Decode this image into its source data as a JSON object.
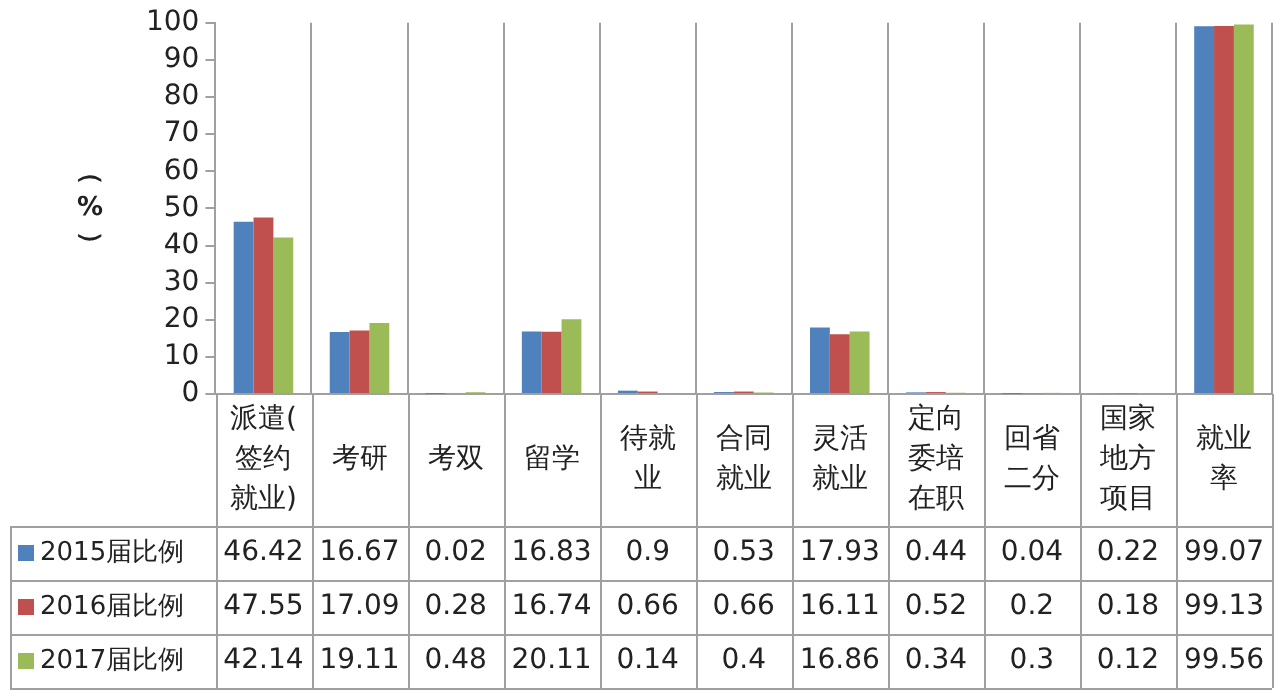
{
  "chart_data": {
    "type": "bar",
    "ylabel": "（%）",
    "categories": [
      "派遣(签约就业)",
      "考研",
      "考双",
      "留学",
      "待就业",
      "合同就业",
      "灵活就业",
      "定向委培在职",
      "回省二分",
      "国家地方项目",
      "就业率"
    ],
    "series": [
      {
        "name": "2015届比例",
        "color": "#4f81bd",
        "values": [
          46.42,
          16.67,
          0.02,
          16.83,
          0.9,
          0.53,
          17.93,
          0.44,
          0.04,
          0.22,
          99.07
        ]
      },
      {
        "name": "2016届比例",
        "color": "#c0504d",
        "values": [
          47.55,
          17.09,
          0.28,
          16.74,
          0.66,
          0.66,
          16.11,
          0.52,
          0.2,
          0.18,
          99.13
        ]
      },
      {
        "name": "2017届比例",
        "color": "#9bbb59",
        "values": [
          42.14,
          19.11,
          0.48,
          20.11,
          0.14,
          0.4,
          16.86,
          0.34,
          0.3,
          0.12,
          99.56
        ]
      }
    ],
    "ylim": [
      0,
      100
    ],
    "yticks": [
      0,
      10,
      20,
      30,
      40,
      50,
      60,
      70,
      80,
      90,
      100
    ],
    "grid": "x",
    "legend": "bottom left",
    "data_labels": true
  }
}
